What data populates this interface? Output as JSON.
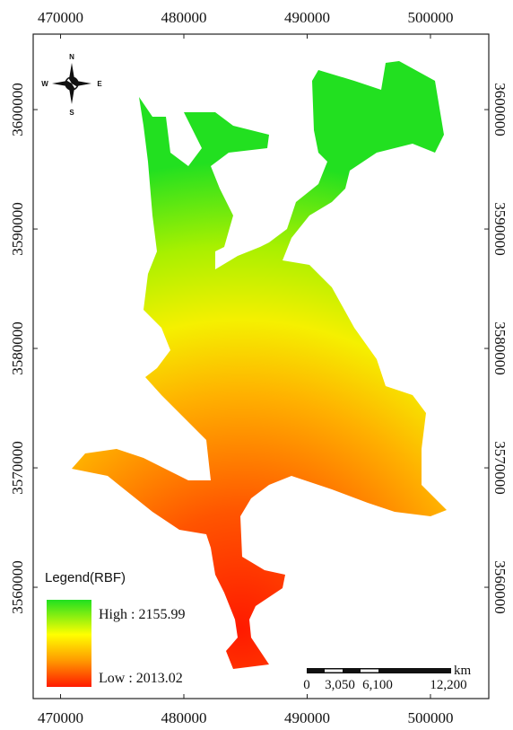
{
  "map": {
    "xticks": [
      470000,
      480000,
      490000,
      500000
    ],
    "yticks": [
      3560000,
      3570000,
      3580000,
      3590000,
      3600000
    ],
    "xlim": [
      467780,
      504730
    ],
    "ylim": [
      3550680,
      3606320
    ],
    "compass": {
      "north": "N",
      "south": "S",
      "west": "W",
      "east": "E"
    },
    "legend": {
      "title": "Legend(RBF)",
      "high": "High : 2155.99",
      "low": "Low : 2013.02"
    },
    "scale_bar": {
      "unit": "km",
      "labels": [
        "0",
        "3,050",
        "6,100",
        "12,200"
      ]
    }
  }
}
